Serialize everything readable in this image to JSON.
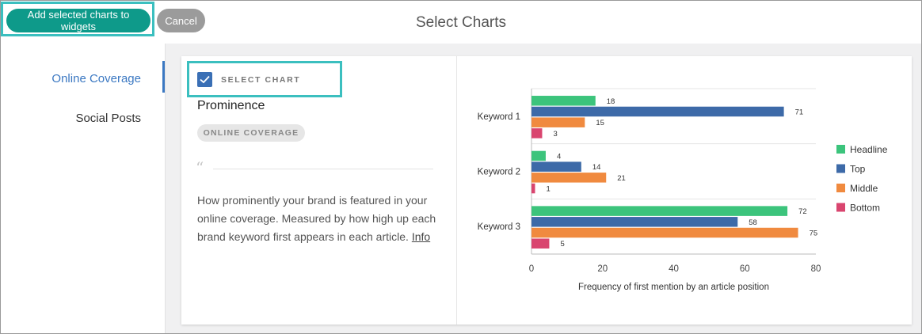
{
  "header": {
    "add_button_label": "Add selected charts to widgets",
    "cancel_button_label": "Cancel",
    "title": "Select Charts"
  },
  "sidebar": {
    "items": [
      {
        "label": "Online Coverage",
        "active": true
      },
      {
        "label": "Social Posts",
        "active": false
      }
    ]
  },
  "card": {
    "select_label": "SELECT CHART",
    "checked": true,
    "chart_name": "Prominence",
    "badge": "ONLINE COVERAGE",
    "description": "How prominently your brand is featured in your online coverage. Measured by how high up each brand keyword first appears in each article.",
    "info_link": "Info"
  },
  "colors": {
    "primary_button": "#0e9a8a",
    "highlight_border": "#3bbfbf",
    "active_link": "#3b78c2"
  },
  "chart_data": {
    "type": "bar",
    "orientation": "horizontal",
    "categories": [
      "Keyword 1",
      "Keyword 2",
      "Keyword 3"
    ],
    "series": [
      {
        "name": "Headline",
        "color": "#3cc47c",
        "values": [
          18,
          4,
          72
        ]
      },
      {
        "name": "Top",
        "color": "#3d6aa8",
        "values": [
          71,
          14,
          58
        ]
      },
      {
        "name": "Middle",
        "color": "#f08a3f",
        "values": [
          15,
          21,
          75
        ]
      },
      {
        "name": "Bottom",
        "color": "#d9456f",
        "values": [
          3,
          1,
          5
        ]
      }
    ],
    "xlabel": "Frequency of first mention by an article position",
    "ylabel": "",
    "xlim": [
      0,
      80
    ],
    "xticks": [
      0,
      20,
      40,
      60,
      80
    ],
    "legend": "right",
    "grid": true
  }
}
